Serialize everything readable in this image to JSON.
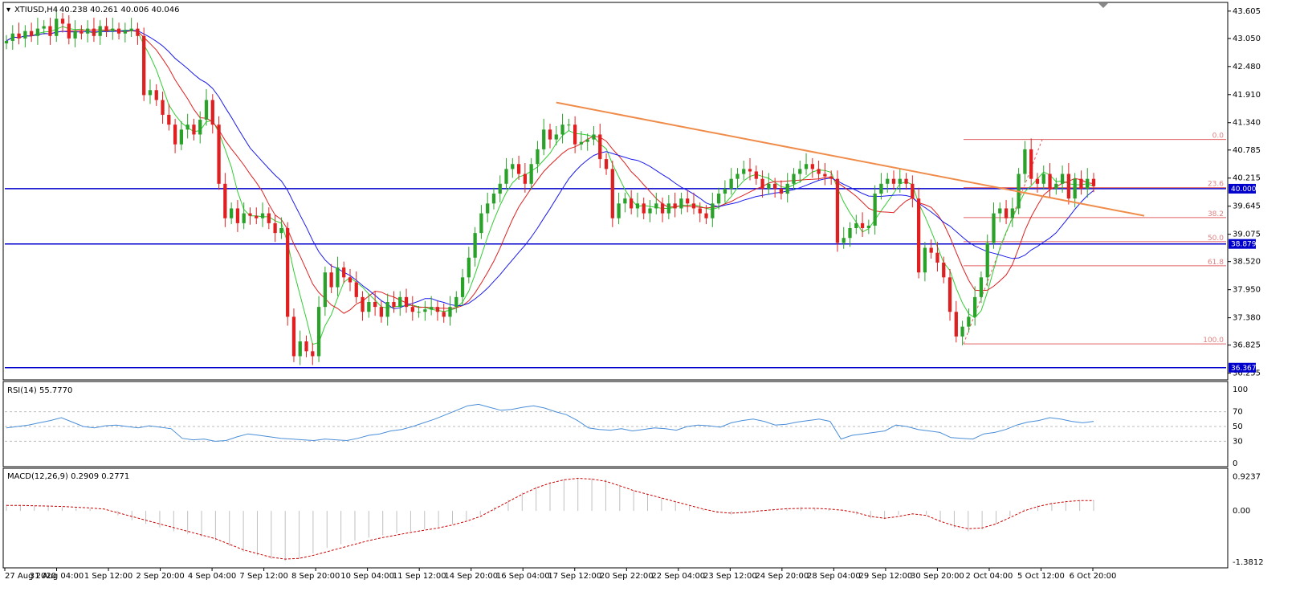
{
  "header": {
    "symbol": "XTIUSD,H4",
    "ohlc": "40.238 40.261 40.006 40.046"
  },
  "rsi_header": "RSI(14) 55.7770",
  "macd_header": "MACD(12,26,9) 0.2909 0.2771",
  "colors": {
    "bull": "#2aa22a",
    "bear": "#e02020",
    "ma_green": "#33cc33",
    "ma_red": "#dd2222",
    "ma_blue": "#1a1aee",
    "trendline": "#f08c4a",
    "fib": "#e06060",
    "level_line": "#0000cc",
    "rsi_line": "#4a8ed8",
    "macd_hist": "#c0c0c0",
    "macd_signal": "#cc0000"
  },
  "chart_data": {
    "type": "candlestick",
    "title": "XTIUSD,H4",
    "price_axis": {
      "ticks": [
        "43.605",
        "43.050",
        "42.480",
        "41.910",
        "41.340",
        "40.785",
        "40.215",
        "39.645",
        "39.075",
        "38.520",
        "37.950",
        "37.380",
        "36.825",
        "36.255"
      ],
      "ylim": [
        36.2,
        43.7
      ]
    },
    "x_axis_labels": [
      "27 Aug 2020",
      "31 Aug 04:00",
      "1 Sep 12:00",
      "2 Sep 20:00",
      "4 Sep 04:00",
      "7 Sep 12:00",
      "8 Sep 20:00",
      "10 Sep 04:00",
      "11 Sep 12:00",
      "14 Sep 20:00",
      "16 Sep 04:00",
      "17 Sep 12:00",
      "20 Sep 22:00",
      "22 Sep 04:00",
      "23 Sep 12:00",
      "24 Sep 20:00",
      "28 Sep 04:00",
      "29 Sep 12:00",
      "30 Sep 20:00",
      "2 Oct 04:00",
      "5 Oct 12:00",
      "6 Oct 20:00"
    ],
    "closes": [
      43.0,
      43.15,
      43.05,
      43.2,
      43.1,
      43.25,
      43.3,
      43.1,
      43.45,
      43.35,
      43.05,
      43.2,
      43.15,
      43.25,
      43.1,
      43.3,
      43.2,
      43.25,
      43.15,
      43.2,
      43.25,
      43.1,
      41.9,
      42.0,
      41.8,
      41.5,
      41.3,
      40.9,
      41.2,
      41.3,
      41.1,
      41.4,
      41.8,
      41.3,
      40.1,
      39.4,
      39.6,
      39.3,
      39.5,
      39.45,
      39.4,
      39.5,
      39.3,
      39.1,
      39.2,
      37.4,
      36.6,
      36.9,
      36.7,
      36.6,
      37.6,
      38.3,
      38.0,
      38.4,
      38.2,
      38.1,
      37.8,
      37.5,
      37.7,
      37.6,
      37.4,
      37.7,
      37.6,
      37.8,
      37.6,
      37.5,
      37.5,
      37.55,
      37.6,
      37.5,
      37.4,
      37.6,
      37.8,
      38.2,
      38.6,
      39.1,
      39.5,
      39.7,
      39.9,
      40.1,
      40.4,
      40.5,
      40.3,
      40.1,
      40.5,
      40.8,
      41.2,
      41.0,
      41.1,
      41.3,
      41.3,
      40.9,
      40.95,
      41.0,
      41.1,
      40.6,
      40.4,
      39.4,
      39.7,
      39.8,
      39.6,
      39.7,
      39.5,
      39.6,
      39.7,
      39.5,
      39.7,
      39.6,
      39.8,
      39.7,
      39.6,
      39.5,
      39.4,
      39.7,
      39.9,
      40.0,
      40.2,
      40.3,
      40.4,
      40.35,
      40.2,
      40.0,
      40.1,
      40.0,
      39.9,
      40.1,
      40.3,
      40.4,
      40.5,
      40.4,
      40.3,
      40.25,
      40.2,
      38.9,
      39.0,
      39.2,
      39.3,
      39.2,
      39.25,
      39.9,
      40.1,
      40.2,
      40.1,
      40.2,
      40.1,
      39.8,
      38.3,
      38.8,
      38.7,
      38.5,
      38.2,
      37.5,
      37.0,
      37.2,
      37.4,
      37.8,
      38.2,
      38.9,
      39.5,
      39.6,
      39.4,
      39.6,
      40.3,
      40.8,
      40.2,
      40.1,
      40.3,
      40.0,
      40.1,
      40.3,
      39.8,
      40.2,
      40.0,
      40.2,
      40.05
    ],
    "horizontal_levels": [
      "40.000",
      "38.879",
      "36.367"
    ],
    "fibonacci_levels": [
      "0.0",
      "23.6",
      "38.2",
      "50.0",
      "61.8",
      "100.0"
    ],
    "rsi": {
      "name": "RSI(14)",
      "current": "55.7770",
      "axis_ticks": [
        "100",
        "70",
        "50",
        "30",
        "0"
      ],
      "ylim": [
        0,
        100
      ],
      "values": [
        48,
        50,
        52,
        55,
        58,
        62,
        56,
        50,
        48,
        51,
        52,
        50,
        48,
        51,
        49,
        47,
        34,
        32,
        33,
        30,
        31,
        36,
        40,
        38,
        36,
        34,
        33,
        32,
        31,
        33,
        32,
        31,
        34,
        38,
        40,
        44,
        46,
        50,
        55,
        60,
        66,
        72,
        78,
        80,
        76,
        72,
        73,
        76,
        78,
        75,
        70,
        66,
        58,
        48,
        46,
        45,
        47,
        44,
        46,
        48,
        47,
        45,
        50,
        52,
        51,
        49,
        55,
        58,
        60,
        57,
        52,
        53,
        56,
        58,
        60,
        57,
        33,
        38,
        40,
        42,
        44,
        52,
        50,
        46,
        44,
        42,
        35,
        34,
        33,
        40,
        42,
        46,
        52,
        56,
        58,
        62,
        60,
        57,
        55,
        57
      ]
    },
    "macd": {
      "name": "MACD(12,26,9)",
      "main": "0.2909",
      "signal": "0.2771",
      "axis_ticks": [
        "0.9237",
        "0.00",
        "-1.3812"
      ],
      "ylim": [
        -1.45,
        1.0
      ],
      "histogram": [
        0.18,
        0.16,
        0.14,
        0.12,
        0.1,
        0.08,
        0.06,
        0.0,
        -0.12,
        -0.25,
        -0.35,
        -0.45,
        -0.55,
        -0.62,
        -0.7,
        -0.8,
        -0.95,
        -1.1,
        -1.2,
        -1.3,
        -1.35,
        -1.3,
        -1.15,
        -1.0,
        -0.9,
        -0.8,
        -0.72,
        -0.66,
        -0.6,
        -0.55,
        -0.5,
        -0.44,
        -0.36,
        -0.25,
        -0.1,
        0.1,
        0.3,
        0.5,
        0.65,
        0.78,
        0.86,
        0.9,
        0.88,
        0.85,
        0.7,
        0.55,
        0.45,
        0.35,
        0.25,
        0.15,
        0.05,
        -0.05,
        -0.1,
        -0.05,
        0.0,
        0.05,
        0.08,
        0.1,
        0.08,
        0.06,
        0.03,
        -0.1,
        -0.2,
        -0.22,
        -0.1,
        0.0,
        -0.1,
        -0.3,
        -0.45,
        -0.55,
        -0.5,
        -0.35,
        -0.15,
        0.05,
        0.15,
        0.22,
        0.27,
        0.29,
        0.29
      ],
      "signal_values": [
        0.15,
        0.15,
        0.14,
        0.13,
        0.12,
        0.1,
        0.08,
        0.05,
        -0.05,
        -0.15,
        -0.25,
        -0.35,
        -0.45,
        -0.55,
        -0.65,
        -0.75,
        -0.9,
        -1.05,
        -1.15,
        -1.25,
        -1.3,
        -1.28,
        -1.2,
        -1.1,
        -1.0,
        -0.9,
        -0.8,
        -0.72,
        -0.65,
        -0.58,
        -0.52,
        -0.46,
        -0.38,
        -0.28,
        -0.15,
        0.05,
        0.25,
        0.45,
        0.62,
        0.75,
        0.84,
        0.88,
        0.86,
        0.8,
        0.68,
        0.55,
        0.45,
        0.35,
        0.25,
        0.15,
        0.05,
        -0.03,
        -0.06,
        -0.04,
        0.0,
        0.03,
        0.06,
        0.07,
        0.07,
        0.05,
        0.02,
        -0.05,
        -0.15,
        -0.2,
        -0.15,
        -0.08,
        -0.12,
        -0.28,
        -0.4,
        -0.48,
        -0.46,
        -0.35,
        -0.18,
        0.0,
        0.12,
        0.2,
        0.25,
        0.28,
        0.28
      ]
    }
  }
}
